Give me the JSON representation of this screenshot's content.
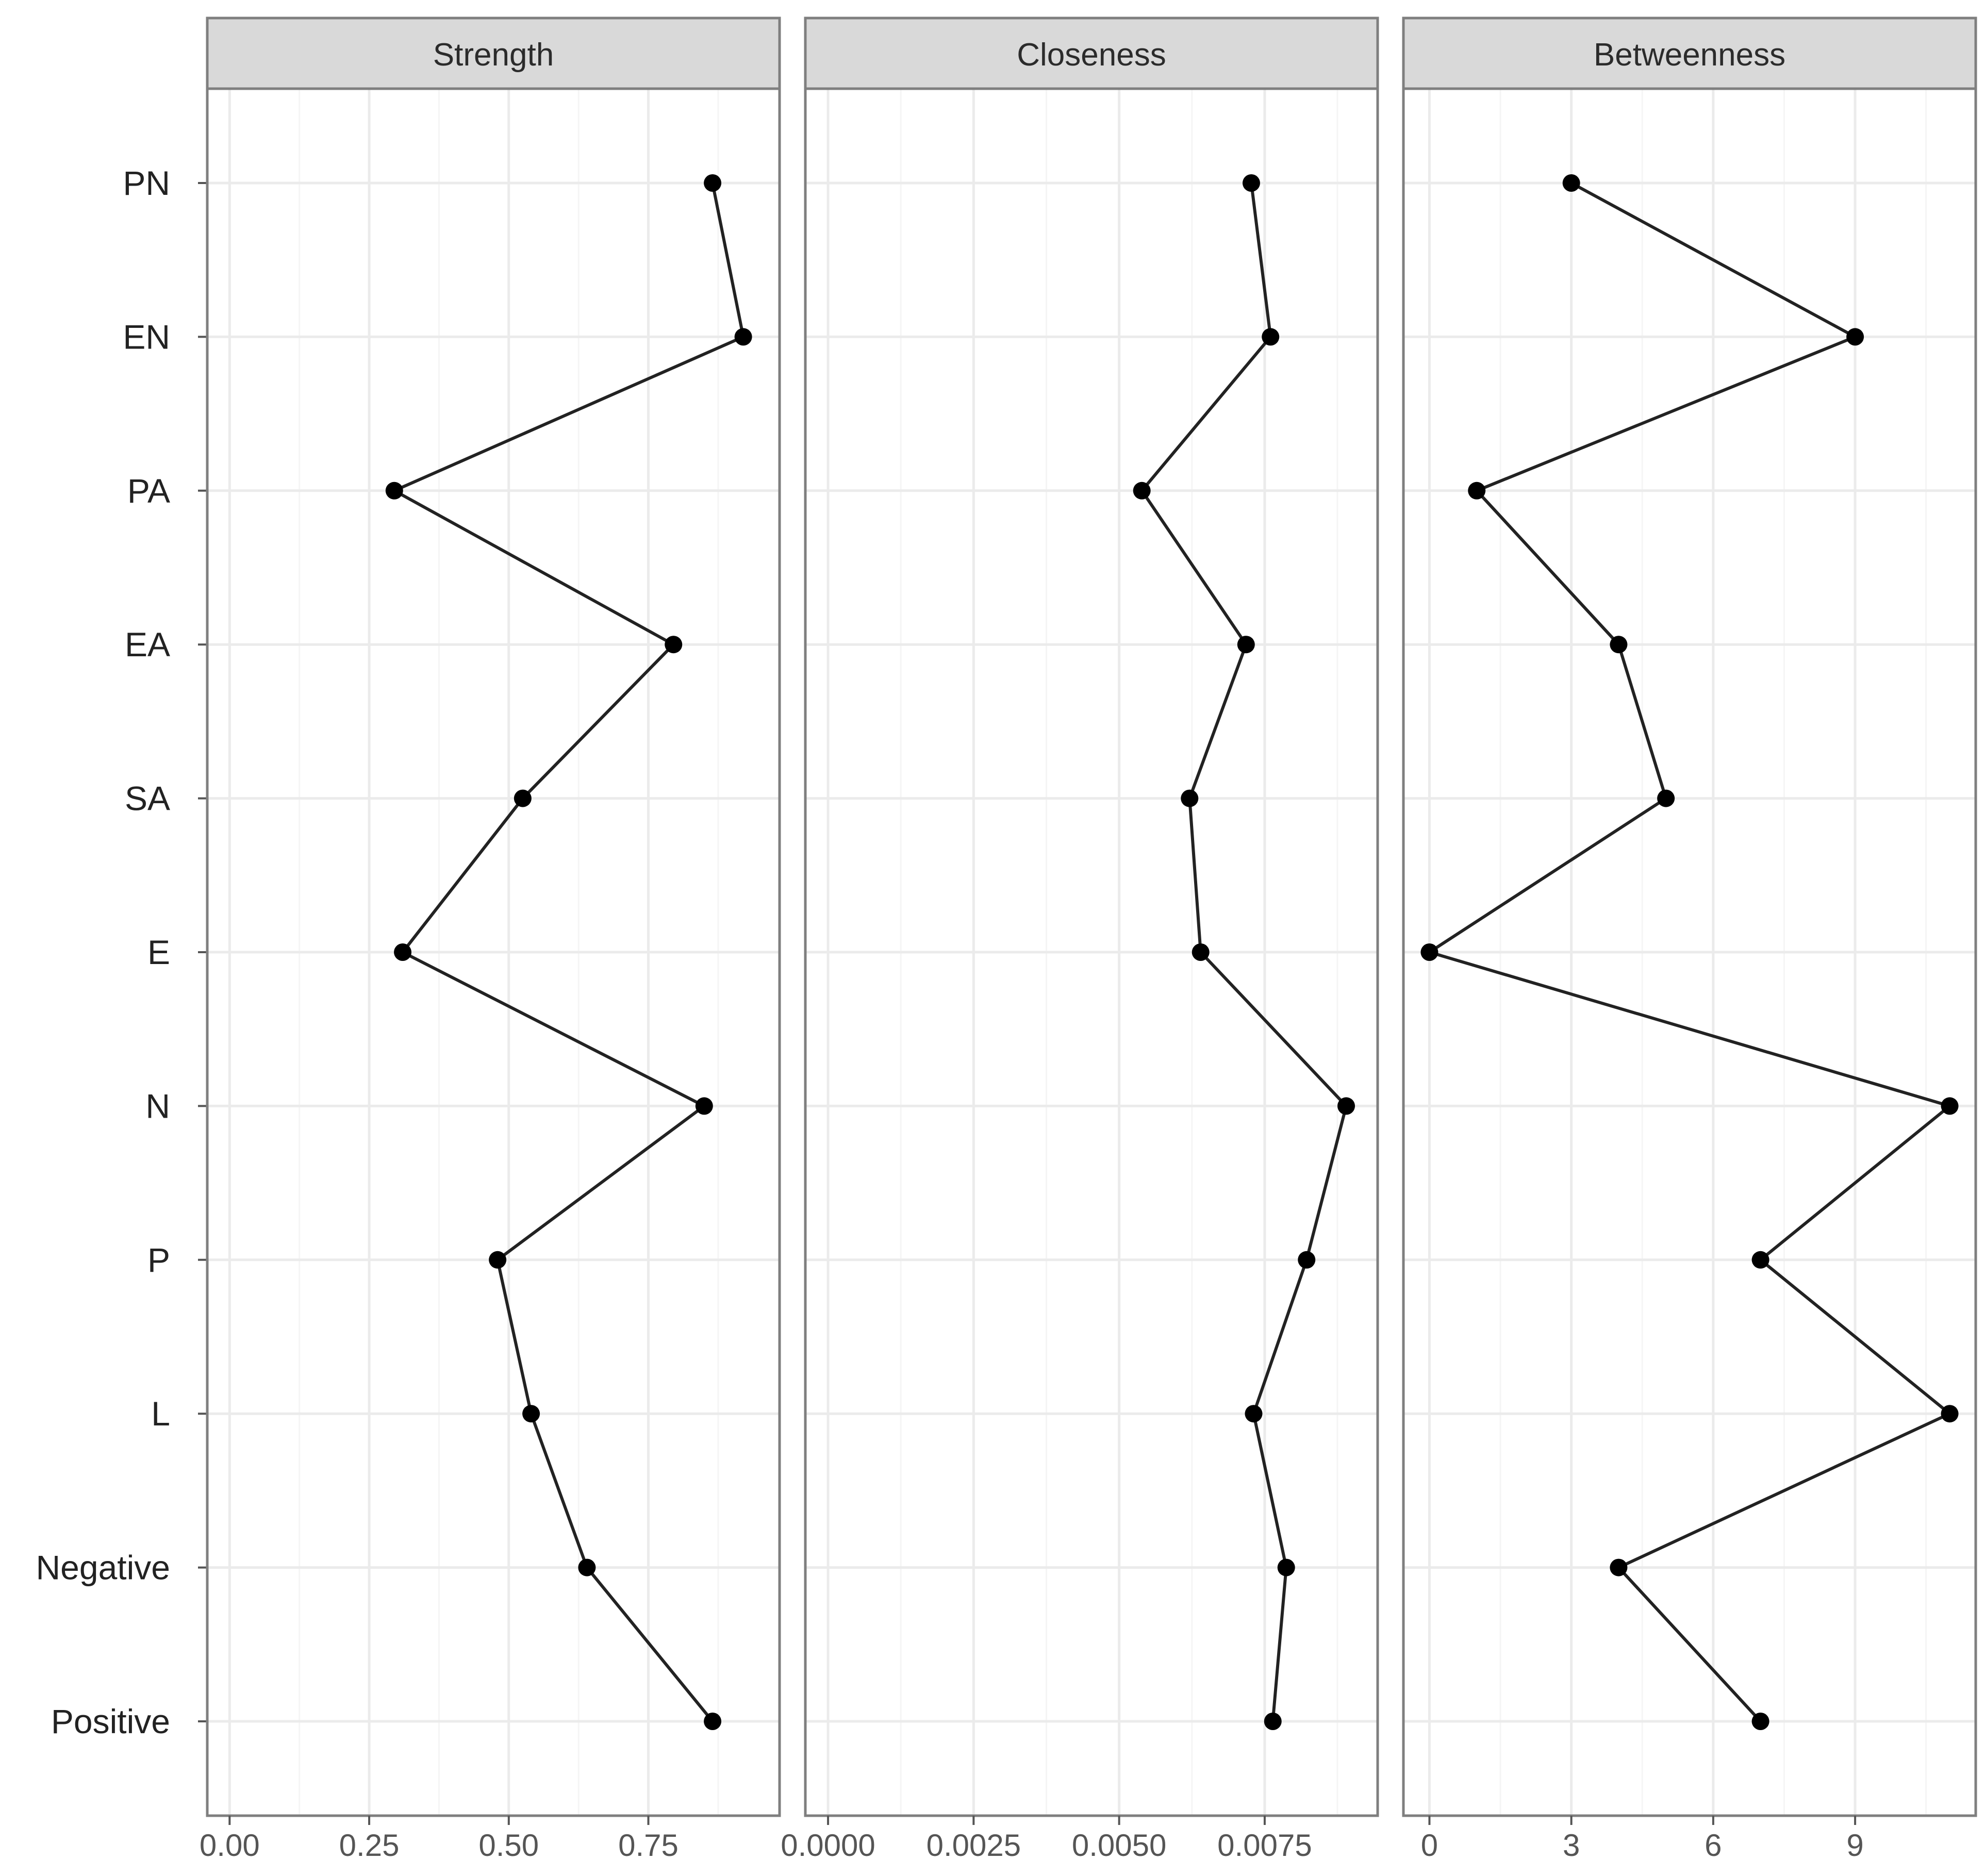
{
  "chart_data": {
    "type": "line",
    "orientation": "horizontal-values-vertical-categories",
    "categories": [
      "PN",
      "EN",
      "PA",
      "EA",
      "SA",
      "E",
      "N",
      "P",
      "L",
      "Negative",
      "Positive"
    ],
    "grid": true,
    "legend": "none",
    "panels": [
      {
        "title": "Strength",
        "xlim": [
          -0.04,
          0.985
        ],
        "xticks": [
          0.0,
          0.25,
          0.5,
          0.75
        ],
        "xtick_labels": [
          "0.00",
          "0.25",
          "0.50",
          "0.75"
        ],
        "values": [
          0.865,
          0.92,
          0.295,
          0.795,
          0.525,
          0.31,
          0.85,
          0.48,
          0.54,
          0.64,
          0.865
        ]
      },
      {
        "title": "Closeness",
        "xlim": [
          -0.00039,
          0.00944
        ],
        "xticks": [
          0.0,
          0.0025,
          0.005,
          0.0075
        ],
        "xtick_labels": [
          "0.0000",
          "0.0025",
          "0.0050",
          "0.0075"
        ],
        "values": [
          0.00727,
          0.0076,
          0.00539,
          0.00718,
          0.00621,
          0.0064,
          0.0089,
          0.00822,
          0.00731,
          0.00787,
          0.00764
        ]
      },
      {
        "title": "Betweenness",
        "xlim": [
          -0.55,
          11.55
        ],
        "xticks": [
          0,
          3,
          6,
          9
        ],
        "xtick_labels": [
          "0",
          "3",
          "6",
          "9"
        ],
        "values": [
          3,
          9,
          1,
          4,
          5,
          0,
          11,
          7,
          11,
          4,
          7
        ]
      }
    ]
  },
  "colors": {
    "line": "#222222",
    "point": "#000000",
    "strip_fill": "#d9d9d9",
    "panel_border": "#7f7f7f",
    "grid_major": "#ebebeb",
    "grid_minor": "#f5f5f5"
  }
}
